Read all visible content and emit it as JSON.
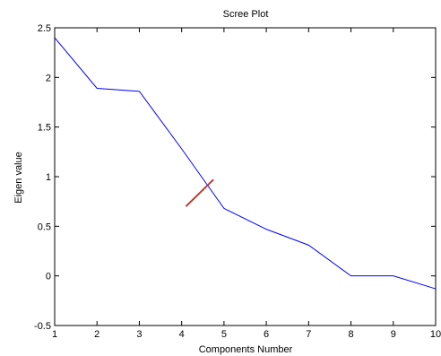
{
  "chart_data": {
    "type": "line",
    "title": "Scree Plot",
    "xlabel": "Components Number",
    "ylabel": "Eigen value",
    "x": [
      1,
      2,
      3,
      4,
      5,
      6,
      7,
      8,
      9,
      10
    ],
    "series": [
      {
        "values": [
          2.4,
          1.89,
          1.86,
          1.28,
          0.68,
          0.47,
          0.31,
          0.0,
          0.0,
          -0.13
        ],
        "color": "#0000ff"
      }
    ],
    "annotation_line": {
      "points": [
        [
          4.1,
          0.7
        ],
        [
          4.75,
          0.97
        ]
      ],
      "color": "#c0392b"
    },
    "xlim": [
      1,
      10
    ],
    "ylim": [
      -0.5,
      2.5
    ],
    "xticks": [
      1,
      2,
      3,
      4,
      5,
      6,
      7,
      8,
      9,
      10
    ],
    "xtick_labels": [
      "1",
      "2",
      "3",
      "4",
      "5",
      "6",
      "7",
      "8",
      "9",
      "10"
    ],
    "yticks": [
      -0.5,
      0,
      0.5,
      1,
      1.5,
      2,
      2.5
    ],
    "ytick_labels": [
      "-0.5",
      "0",
      "0.5",
      "1",
      "1.5",
      "2",
      "2.5"
    ],
    "grid": false,
    "legend": "none"
  }
}
